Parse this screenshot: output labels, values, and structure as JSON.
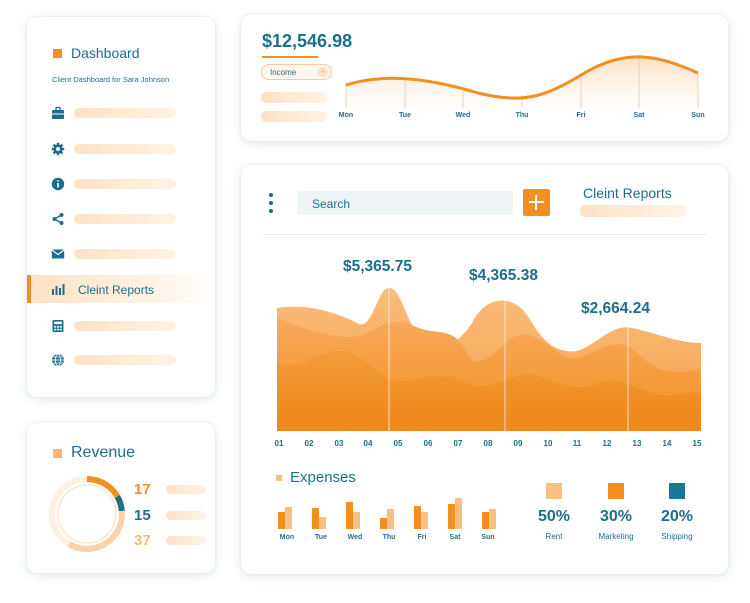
{
  "sidebar": {
    "title": "Dashboard",
    "subtitle": "Client Dashboard for Sara Johnson",
    "active_label": "Cleint Reports",
    "items": [
      {
        "icon": "briefcase-icon"
      },
      {
        "icon": "gear-icon"
      },
      {
        "icon": "info-icon"
      },
      {
        "icon": "share-icon"
      },
      {
        "icon": "mail-icon"
      },
      {
        "icon": "bar-chart-icon",
        "label": "Cleint Reports"
      },
      {
        "icon": "calculator-icon"
      },
      {
        "icon": "globe-icon"
      }
    ]
  },
  "revenue": {
    "title": "Revenue",
    "rows": [
      {
        "value": "17",
        "color": "#f28f20"
      },
      {
        "value": "15",
        "color": "#1c6e8c"
      },
      {
        "value": "37",
        "color": "#f9b96e"
      }
    ]
  },
  "income_card": {
    "amount": "$12,546.98",
    "selector": "Income",
    "days": [
      "Mon",
      "Tue",
      "Wed",
      "Thu",
      "Fri",
      "Sat",
      "Sun"
    ]
  },
  "main": {
    "search_placeholder": "Search",
    "reports_title": "Cleint Reports",
    "peaks": [
      "$5,365.75",
      "$4,365.38",
      "$2,664.24"
    ],
    "x_labels": [
      "01",
      "02",
      "03",
      "04",
      "05",
      "06",
      "07",
      "08",
      "09",
      "10",
      "11",
      "12",
      "13",
      "14",
      "15"
    ],
    "expenses_title": "Expenses",
    "expense_days": [
      "Mon",
      "Tue",
      "Wed",
      "Thu",
      "Fri",
      "Sat",
      "Sun"
    ],
    "shares": [
      {
        "percent": "50%",
        "name": "Rent",
        "color": "#fbbf82"
      },
      {
        "percent": "30%",
        "name": "Marketing",
        "color": "#f28f20"
      },
      {
        "percent": "20%",
        "name": "Shipping",
        "color": "#17789a"
      }
    ]
  },
  "colors": {
    "accent": "#f28f20",
    "primary": "#1c6e8c",
    "light_accent": "#fde2c4"
  }
}
